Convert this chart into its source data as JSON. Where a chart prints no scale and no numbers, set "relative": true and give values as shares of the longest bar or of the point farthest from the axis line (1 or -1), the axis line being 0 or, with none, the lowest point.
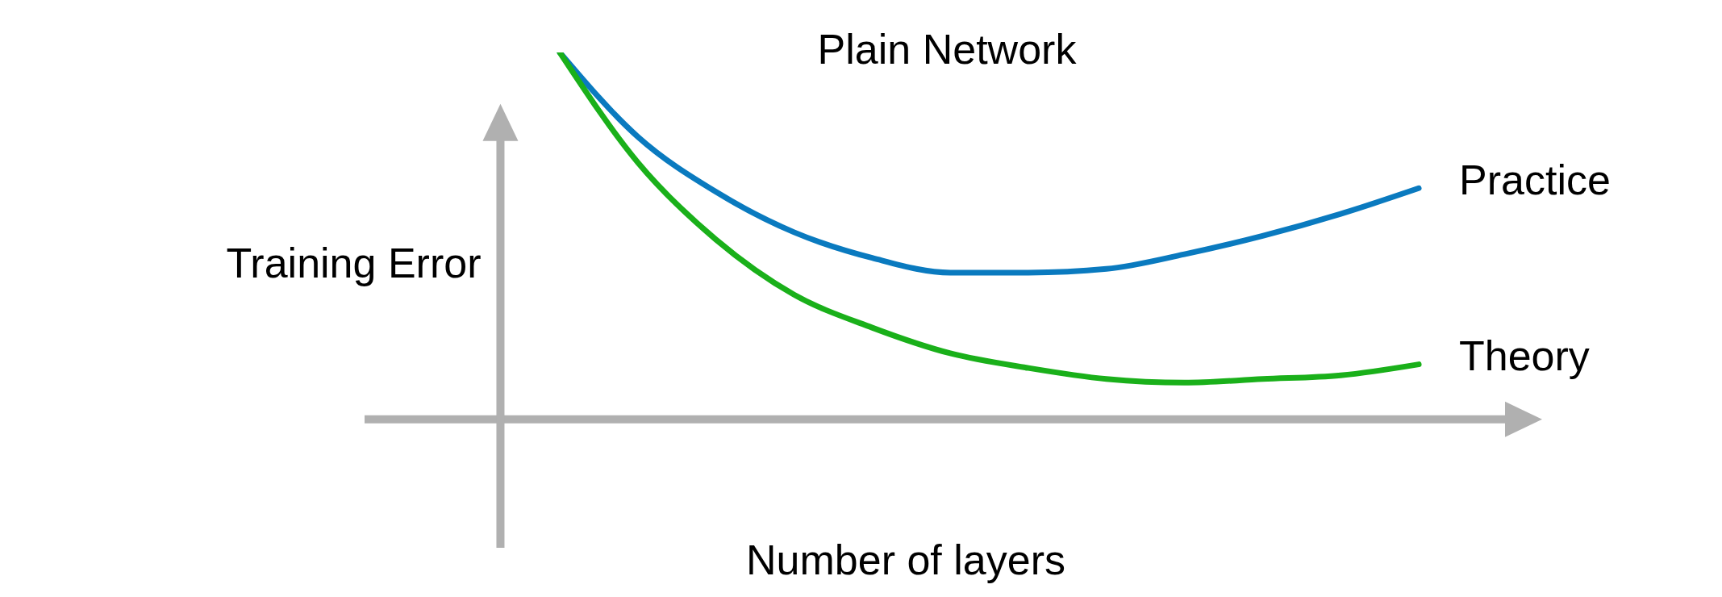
{
  "chart_data": {
    "type": "line",
    "title": "Plain Network",
    "xlabel": "Number of layers",
    "ylabel": "Training Error",
    "relative": true,
    "categories": [
      null,
      null,
      null,
      null,
      null,
      null,
      null,
      null,
      null,
      null,
      null,
      null
    ],
    "series": [
      {
        "name": "Practice",
        "color": "#0a7abf",
        "values": [
          1.0,
          0.77,
          0.62,
          0.51,
          0.44,
          0.4,
          0.4,
          0.41,
          0.45,
          0.5,
          0.56,
          0.63
        ]
      },
      {
        "name": "Theory",
        "color": "#1ab01a",
        "values": [
          1.0,
          0.7,
          0.49,
          0.34,
          0.25,
          0.18,
          0.14,
          0.11,
          0.1,
          0.11,
          0.12,
          0.15
        ]
      }
    ]
  }
}
